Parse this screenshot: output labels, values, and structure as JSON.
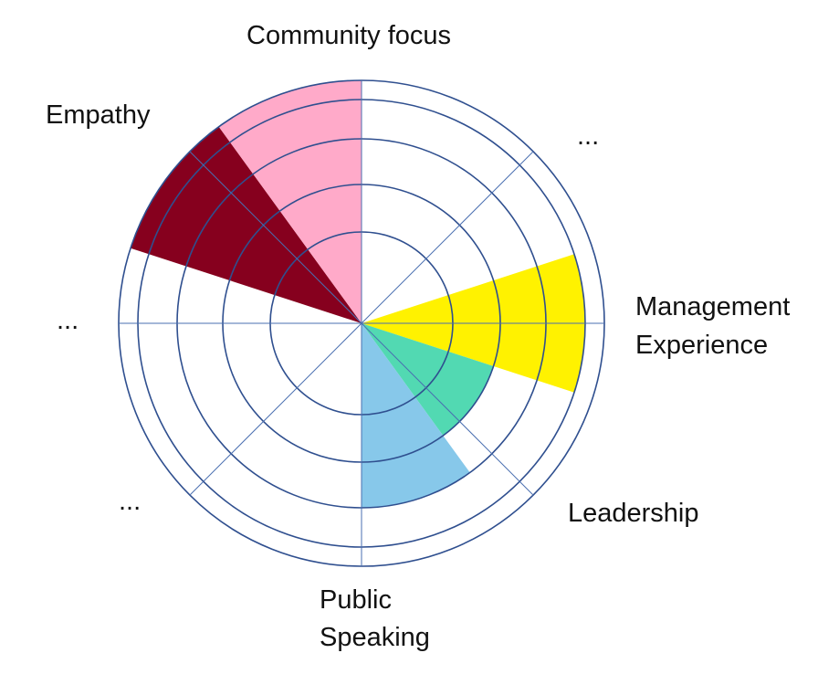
{
  "labels": {
    "community_focus": "Community focus",
    "ellipsis_top_right": "...",
    "management_line1": "Management",
    "management_line2": "Experience",
    "leadership": "Leadership",
    "public_line1": "Public",
    "public_line2": "Speaking",
    "ellipsis_bottom_left": "...",
    "ellipsis_left": "...",
    "empathy": "Empathy"
  },
  "rings": 5,
  "sectors": [
    {
      "label": "Community focus",
      "level": 0,
      "color": "#ffffff"
    },
    {
      "label": "...",
      "level": 0,
      "color": "#ffffff"
    },
    {
      "label": "Management Experience",
      "level": 4,
      "color": "#fff200"
    },
    {
      "label": "Management Experience",
      "level": 2,
      "color": "#52d9b2"
    },
    {
      "label": "Leadership",
      "level": 3,
      "color": "#87c8ea"
    },
    {
      "label": "Public Speaking",
      "level": 0,
      "color": "#ffffff"
    },
    {
      "label": "...",
      "level": 0,
      "color": "#ffffff"
    },
    {
      "label": "...",
      "level": 0,
      "color": "#ffffff"
    },
    {
      "label": "Empathy",
      "level": 5,
      "color": "#86001e"
    },
    {
      "label": "Community focus",
      "level": 5,
      "color": "#ffaac9"
    }
  ],
  "colors": {
    "ring_stroke": "#2f4f8f",
    "spoke_stroke": "#4a6fb0"
  }
}
